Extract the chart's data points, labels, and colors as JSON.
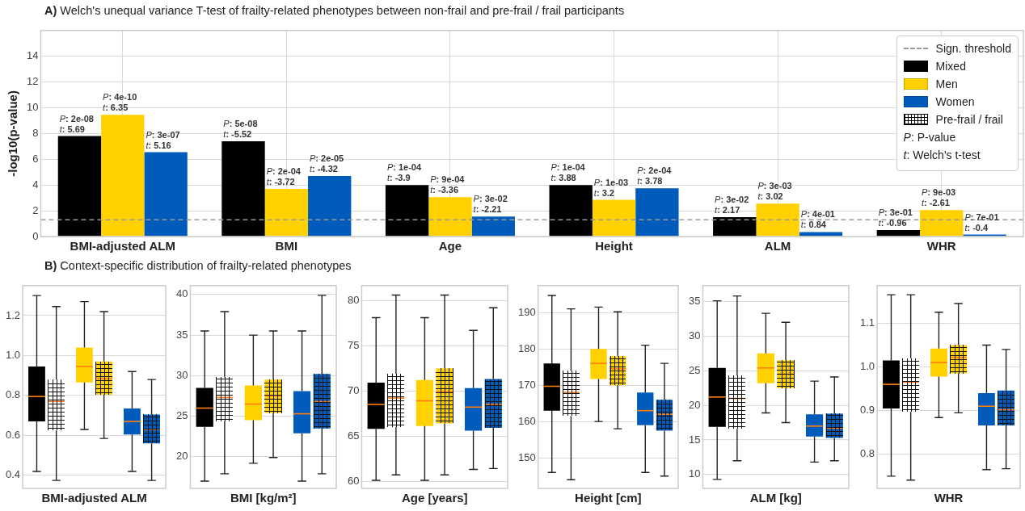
{
  "chart_data": [
    {
      "type": "bar",
      "title": "A) Welch's unequal variance T-test of frailty-related phenotypes between non-frail and pre-frail / frail participants",
      "ylabel": "-log10(p-value)",
      "categories": [
        "BMI-adjusted ALM",
        "BMI",
        "Age",
        "Height",
        "ALM",
        "WHR"
      ],
      "series": [
        {
          "name": "Mixed",
          "color": "#000000",
          "values": [
            7.8,
            7.4,
            4.0,
            4.0,
            1.5,
            0.5
          ],
          "value_labels": [
            "P: 2e-08\nt: 5.69",
            "P: 5e-08\nt: -5.52",
            "P: 1e-04\nt: -3.9",
            "P: 1e-04\nt: 3.88",
            "P: 3e-02\nt: 2.17",
            "P: 3e-01\nt: -0.96"
          ]
        },
        {
          "name": "Men",
          "color": "#ffd100",
          "values": [
            9.45,
            3.7,
            3.05,
            2.85,
            2.55,
            2.05
          ],
          "value_labels": [
            "P: 4e-10\nt: 6.35",
            "P: 2e-04\nt: -3.72",
            "P: 9e-04\nt: -3.36",
            "P: 1e-03\nt: 3.2",
            "P: 3e-03\nt: 3.02",
            "P: 9e-03\nt: -2.61"
          ]
        },
        {
          "name": "Women",
          "color": "#005bbb",
          "values": [
            6.55,
            4.7,
            1.55,
            3.75,
            0.35,
            0.15
          ],
          "value_labels": [
            "P: 3e-07\nt: 5.16",
            "P: 2e-05\nt: -4.32",
            "P: 3e-02\nt: -2.21",
            "P: 2e-04\nt: 3.78",
            "P: 4e-01\nt: 0.84",
            "P: 7e-01\nt: -0.4"
          ]
        }
      ],
      "ylim": [
        0,
        16
      ],
      "yticks": [
        0,
        2,
        4,
        6,
        8,
        10,
        12,
        14
      ],
      "grid": true,
      "legend": "top right",
      "ref_lines": [
        {
          "axis": "y",
          "value": 1.3,
          "label": "Sign. threshold",
          "color": "#999999",
          "line_style": "dashed"
        }
      ],
      "annotations": [
        "Pre-frail / frail",
        "P: P-value",
        "t: Welch's t-test"
      ]
    },
    {
      "type": "box",
      "title": "B) Context-specific distribution of frailty-related phenotypes",
      "xlabel": "BMI-adjusted ALM",
      "categories": [
        null,
        null,
        null
      ],
      "ylim": [
        0.335,
        1.35
      ],
      "yticks": [
        0.4,
        0.6,
        0.8,
        {
          "value": 1,
          "label": "1.0"
        },
        1.2
      ],
      "grid": "y",
      "series": [
        {
          "colors": [
            "#000000",
            "#ffd100",
            "#005bbb"
          ],
          "boxes": [
            {
              "low": 0.42,
              "q1": 0.67,
              "median": 0.795,
              "q3": 0.945,
              "high": 1.3
            },
            {
              "low": 0.63,
              "q1": 0.865,
              "median": 0.945,
              "q3": 1.04,
              "high": 1.27
            },
            {
              "low": 0.42,
              "q1": 0.605,
              "median": 0.67,
              "q3": 0.735,
              "high": 0.92
            }
          ]
        },
        {
          "colors": [
            "#ffffff",
            "#ffd100",
            "#005bbb"
          ],
          "boxes": [
            {
              "low": 0.375,
              "q1": 0.625,
              "median": 0.77,
              "q3": 0.88,
              "high": 1.245
            },
            {
              "low": 0.585,
              "q1": 0.805,
              "median": 0.885,
              "q3": 0.97,
              "high": 1.22
            },
            {
              "low": 0.375,
              "q1": 0.56,
              "median": 0.63,
              "q3": 0.705,
              "high": 0.88
            }
          ]
        }
      ]
    },
    {
      "type": "box",
      "xlabel": "BMI [kg/m²]",
      "categories": [
        null,
        null,
        null
      ],
      "ylim": [
        16.1,
        41.1
      ],
      "yticks": [
        20,
        25,
        30,
        35,
        40
      ],
      "grid": "y",
      "series": [
        {
          "colors": [
            "#000000",
            "#ffd100",
            "#005bbb"
          ],
          "boxes": [
            {
              "low": 17.0,
              "q1": 23.7,
              "median": 26.0,
              "q3": 28.5,
              "high": 35.5
            },
            {
              "low": 19.2,
              "q1": 24.5,
              "median": 26.5,
              "q3": 28.8,
              "high": 35.0
            },
            {
              "low": 17.0,
              "q1": 22.9,
              "median": 25.3,
              "q3": 28.1,
              "high": 35.5
            }
          ]
        },
        {
          "colors": [
            "#ffffff",
            "#ffd100",
            "#005bbb"
          ],
          "boxes": [
            {
              "low": 17.9,
              "q1": 24.4,
              "median": 27.3,
              "q3": 29.8,
              "high": 37.9
            },
            {
              "low": 19.9,
              "q1": 25.4,
              "median": 27.5,
              "q3": 29.5,
              "high": 35.5
            },
            {
              "low": 17.9,
              "q1": 23.5,
              "median": 26.8,
              "q3": 30.2,
              "high": 39.9
            }
          ]
        }
      ]
    },
    {
      "type": "box",
      "xlabel": "Age [years]",
      "categories": [
        null,
        null,
        null
      ],
      "ylim": [
        59.2,
        81.65
      ],
      "yticks": [
        60,
        65,
        70,
        75,
        80
      ],
      "grid": "y",
      "series": [
        {
          "colors": [
            "#000000",
            "#ffd100",
            "#005bbb"
          ],
          "boxes": [
            {
              "low": 60.1,
              "q1": 65.8,
              "median": 68.5,
              "q3": 70.9,
              "high": 78.1
            },
            {
              "low": 60.1,
              "q1": 66.1,
              "median": 68.9,
              "q3": 71.2,
              "high": 78.1
            },
            {
              "low": 61.3,
              "q1": 65.6,
              "median": 68.2,
              "q3": 70.3,
              "high": 76.7
            }
          ]
        },
        {
          "colors": [
            "#ffffff",
            "#ffd100",
            "#005bbb"
          ],
          "boxes": [
            {
              "low": 60.7,
              "q1": 66.0,
              "median": 69.2,
              "q3": 71.9,
              "high": 80.6
            },
            {
              "low": 60.7,
              "q1": 66.4,
              "median": 69.9,
              "q3": 72.5,
              "high": 80.6
            },
            {
              "low": 61.4,
              "q1": 65.9,
              "median": 68.5,
              "q3": 71.3,
              "high": 79.2
            }
          ]
        }
      ]
    },
    {
      "type": "box",
      "xlabel": "Height [cm]",
      "categories": [
        null,
        null,
        null
      ],
      "ylim": [
        141.6,
        197.4
      ],
      "yticks": [
        150,
        160,
        170,
        180,
        190
      ],
      "grid": "y",
      "series": [
        {
          "colors": [
            "#000000",
            "#ffd100",
            "#005bbb"
          ],
          "boxes": [
            {
              "low": 146,
              "q1": 163,
              "median": 169.7,
              "q3": 176,
              "high": 194.7
            },
            {
              "low": 160,
              "q1": 171.7,
              "median": 176,
              "q3": 180,
              "high": 191.5
            },
            {
              "low": 146,
              "q1": 159,
              "median": 163,
              "q3": 168,
              "high": 181
            }
          ]
        },
        {
          "colors": [
            "#ffffff",
            "#ffd100",
            "#005bbb"
          ],
          "boxes": [
            {
              "low": 144,
              "q1": 161.5,
              "median": 168,
              "q3": 174,
              "high": 191
            },
            {
              "low": 158,
              "q1": 170,
              "median": 174.5,
              "q3": 178,
              "high": 190.2
            },
            {
              "low": 145,
              "q1": 157.5,
              "median": 162,
              "q3": 166,
              "high": 176
            }
          ]
        }
      ]
    },
    {
      "type": "box",
      "xlabel": "ALM [kg]",
      "categories": [
        null,
        null,
        null
      ],
      "ylim": [
        8.0,
        37.3
      ],
      "yticks": [
        10,
        15,
        20,
        25,
        30,
        35
      ],
      "grid": "y",
      "series": [
        {
          "colors": [
            "#000000",
            "#ffd100",
            "#005bbb"
          ],
          "boxes": [
            {
              "low": 9.3,
              "q1": 16.9,
              "median": 21.2,
              "q3": 25.4,
              "high": 35.1
            },
            {
              "low": 18.9,
              "q1": 23.2,
              "median": 25.4,
              "q3": 27.5,
              "high": 33.3
            },
            {
              "low": 11.8,
              "q1": 15.5,
              "median": 17.0,
              "q3": 18.7,
              "high": 23.5
            }
          ]
        },
        {
          "colors": [
            "#ffffff",
            "#ffd100",
            "#005bbb"
          ],
          "boxes": [
            {
              "low": 12.0,
              "q1": 16.6,
              "median": 21.0,
              "q3": 24.3,
              "high": 35.8
            },
            {
              "low": 17.5,
              "q1": 22.5,
              "median": 24.5,
              "q3": 26.5,
              "high": 32.0
            },
            {
              "low": 12.0,
              "q1": 15.3,
              "median": 16.7,
              "q3": 18.8,
              "high": 24.1
            }
          ]
        }
      ]
    },
    {
      "type": "box",
      "xlabel": "WHR",
      "categories": [
        null,
        null,
        null
      ],
      "ylim": [
        0.722,
        1.186
      ],
      "yticks": [
        0.8,
        0.9,
        {
          "value": 1,
          "label": "1.0"
        },
        1.1
      ],
      "grid": "y",
      "series": [
        {
          "colors": [
            "#000000",
            "#ffd100",
            "#005bbb"
          ],
          "boxes": [
            {
              "low": 0.75,
              "q1": 0.905,
              "median": 0.96,
              "q3": 1.015,
              "high": 1.165
            },
            {
              "low": 0.884,
              "q1": 0.978,
              "median": 1.01,
              "q3": 1.042,
              "high": 1.125
            },
            {
              "low": 0.765,
              "q1": 0.866,
              "median": 0.91,
              "q3": 0.94,
              "high": 1.05
            }
          ]
        },
        {
          "colors": [
            "#ffffff",
            "#ffd100",
            "#005bbb"
          ],
          "boxes": [
            {
              "low": 0.741,
              "q1": 0.897,
              "median": 0.965,
              "q3": 1.02,
              "high": 1.165
            },
            {
              "low": 0.895,
              "q1": 0.985,
              "median": 1.022,
              "q3": 1.05,
              "high": 1.145
            },
            {
              "low": 0.767,
              "q1": 0.866,
              "median": 0.902,
              "q3": 0.946,
              "high": 1.04
            }
          ]
        }
      ]
    }
  ]
}
